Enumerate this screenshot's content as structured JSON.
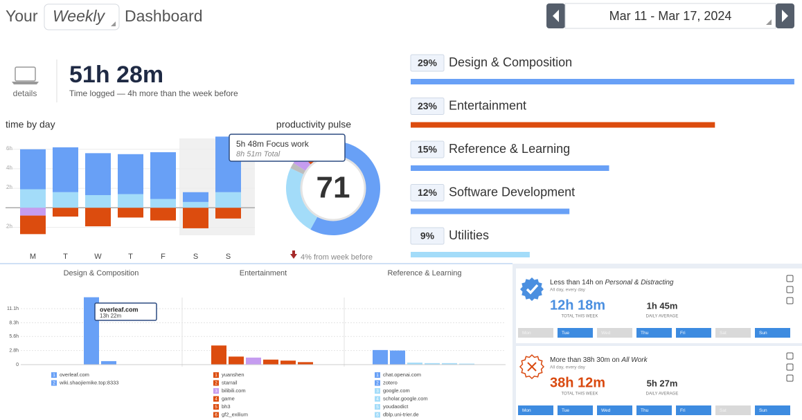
{
  "header": {
    "prefix": "Your",
    "period": "Weekly",
    "suffix": "Dashboard",
    "date_range": "Mar 11 - Mar 17, 2024"
  },
  "summary": {
    "link": "details",
    "total": "51h 28m",
    "subtitle": "Time logged — 4h more than the week before"
  },
  "time_by_day": {
    "title": "time by day",
    "categories": [
      "M",
      "T",
      "W",
      "T",
      "F",
      "S",
      "S"
    ],
    "ylim": [
      -3.1,
      7.4
    ],
    "yticks": [
      {
        "value": 6,
        "label": "6h"
      },
      {
        "value": 4,
        "label": "4h"
      },
      {
        "value": 2,
        "label": "2h"
      },
      {
        "value": -2,
        "label": "2h"
      }
    ],
    "series": [
      {
        "color": "#a3dcf9",
        "values": [
          1.9,
          1.6,
          1.3,
          1.4,
          0.9,
          0.6,
          1.6
        ]
      },
      {
        "color": "#68a0f6",
        "values": [
          4.1,
          4.6,
          4.3,
          4.1,
          4.8,
          1.0,
          5.7
        ]
      },
      {
        "color": "#c59cf0",
        "values": [
          -0.8,
          0,
          0,
          0,
          0,
          0,
          0
        ]
      },
      {
        "color": "#dc4c0e",
        "values": [
          -1.9,
          -0.9,
          -1.9,
          -1.0,
          -1.3,
          -2.1,
          -1.1
        ]
      }
    ]
  },
  "pulse": {
    "title": "productivity pulse",
    "score": 71,
    "tooltip": {
      "title": "5h 48m Focus work",
      "subtitle": "8h 51m Total"
    },
    "change": "4% from week before",
    "segments": [
      {
        "color": "#68a0f6",
        "value": 58
      },
      {
        "color": "#a3dcf9",
        "value": 24
      },
      {
        "color": "#bdbdbd",
        "value": 2
      },
      {
        "color": "#c59cf0",
        "value": 4
      },
      {
        "color": "#dc4c0e",
        "value": 12
      }
    ]
  },
  "category_breakdown": {
    "names": [
      "Design & Composition",
      "Entertainment",
      "Reference & Learning",
      "Software Development",
      "Utilities"
    ],
    "values": [
      29,
      23,
      15,
      12,
      9
    ],
    "value_labels": [
      "29%",
      "23%",
      "15%",
      "12%",
      "9%"
    ],
    "colors": [
      "#68a0f6",
      "#dc4c0e",
      "#68a0f6",
      "#68a0f6",
      "#a3dcf9"
    ]
  },
  "apps": {
    "ylim": [
      0,
      14
    ],
    "yticks": [
      {
        "value": 0,
        "label": "0"
      },
      {
        "value": 2.8,
        "label": "2.8h"
      },
      {
        "value": 5.6,
        "label": "5.6h"
      },
      {
        "value": 8.3,
        "label": "8.3h"
      },
      {
        "value": 11.1,
        "label": "11.1h"
      }
    ],
    "panels": [
      {
        "title": "Design & Composition",
        "tooltip": {
          "title": "overleaf.com",
          "subtitle": "13h 22m"
        },
        "items": [
          {
            "rank": 1,
            "name": "overleaf.com",
            "value": 13.37,
            "color": "#68a0f6"
          },
          {
            "rank": 2,
            "name": "wiki.shaojiemike.top:8333",
            "value": 0.7,
            "color": "#68a0f6"
          }
        ]
      },
      {
        "title": "Entertainment",
        "items": [
          {
            "rank": 1,
            "name": "yuanshen",
            "value": 3.8,
            "color": "#dc4c0e"
          },
          {
            "rank": 2,
            "name": "starrail",
            "value": 1.6,
            "color": "#dc4c0e"
          },
          {
            "rank": 3,
            "name": "bilibili.com",
            "value": 1.4,
            "color": "#c59cf0"
          },
          {
            "rank": 4,
            "name": "game",
            "value": 1.0,
            "color": "#dc4c0e"
          },
          {
            "rank": 5,
            "name": "bh3",
            "value": 0.8,
            "color": "#dc4c0e"
          },
          {
            "rank": 6,
            "name": "gf2_exilium",
            "value": 0.5,
            "color": "#dc4c0e"
          }
        ]
      },
      {
        "title": "Reference & Learning",
        "items": [
          {
            "rank": 1,
            "name": "chat.openai.com",
            "value": 2.9,
            "color": "#68a0f6"
          },
          {
            "rank": 2,
            "name": "zotero",
            "value": 2.8,
            "color": "#68a0f6"
          },
          {
            "rank": 3,
            "name": "google.com",
            "value": 0.4,
            "color": "#a3dcf9"
          },
          {
            "rank": 4,
            "name": "scholar.google.com",
            "value": 0.3,
            "color": "#a3dcf9"
          },
          {
            "rank": 5,
            "name": "youdaodict",
            "value": 0.3,
            "color": "#a3dcf9"
          },
          {
            "rank": 6,
            "name": "dblp.uni-trier.de",
            "value": 0.2,
            "color": "#a3dcf9"
          }
        ]
      }
    ]
  },
  "goals": [
    {
      "prefix": "Less than 14h on ",
      "target": "Personal & Distracting",
      "note": "All day, every day",
      "total": "12h 18m",
      "total_label": "TOTAL THIS WEEK",
      "average": "1h 45m",
      "average_label": "DAILY AVERAGE",
      "color": "#4a8fe0",
      "days": [
        {
          "label": "Mon",
          "met": false
        },
        {
          "label": "Tue",
          "met": true
        },
        {
          "label": "Wed",
          "met": false
        },
        {
          "label": "Thu",
          "met": true
        },
        {
          "label": "Fri",
          "met": true
        },
        {
          "label": "Sat",
          "met": false
        },
        {
          "label": "Sun",
          "met": true
        }
      ]
    },
    {
      "prefix": "More than 38h 30m on ",
      "target": "All Work",
      "note": "All day, every day",
      "total": "38h 12m",
      "total_label": "TOTAL THIS WEEK",
      "average": "5h 27m",
      "average_label": "DAILY AVERAGE",
      "color": "#d9490f",
      "days": [
        {
          "label": "Mon",
          "met": true
        },
        {
          "label": "Tue",
          "met": true
        },
        {
          "label": "Wed",
          "met": true
        },
        {
          "label": "Thu",
          "met": true
        },
        {
          "label": "Fri",
          "met": true
        },
        {
          "label": "Sat",
          "met": false
        },
        {
          "label": "Sun",
          "met": true
        }
      ]
    }
  ]
}
